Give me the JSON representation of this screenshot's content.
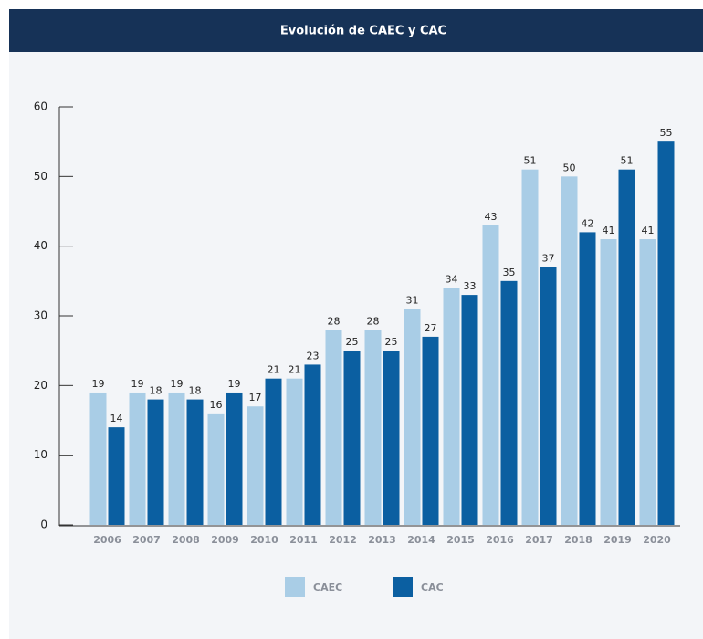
{
  "chart_data": {
    "type": "bar",
    "title": "Evolución de CAEC y CAC",
    "categories": [
      "2006",
      "2007",
      "2008",
      "2009",
      "2010",
      "2011",
      "2012",
      "2013",
      "2014",
      "2015",
      "2016",
      "2017",
      "2018",
      "2019",
      "2020"
    ],
    "series": [
      {
        "name": "CAEC",
        "color": "#a9cde6",
        "values": [
          19,
          19,
          19,
          16,
          17,
          21,
          28,
          28,
          31,
          34,
          43,
          51,
          50,
          41,
          41
        ]
      },
      {
        "name": "CAC",
        "color": "#0b5fa1",
        "values": [
          14,
          18,
          18,
          19,
          21,
          23,
          25,
          25,
          27,
          33,
          35,
          37,
          42,
          51,
          55
        ]
      }
    ],
    "ylim": [
      0,
      60
    ],
    "yticks": [
      0,
      10,
      20,
      30,
      40,
      50,
      60
    ],
    "legend": "bottom"
  }
}
